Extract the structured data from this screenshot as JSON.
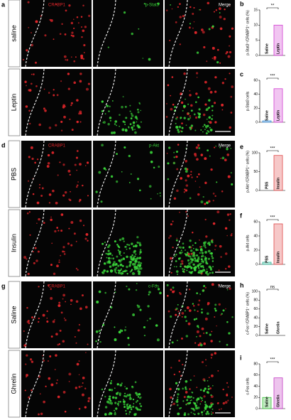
{
  "figure": {
    "panels": [
      {
        "letter": "a",
        "columns": [
          "CRABP1",
          "p-Stat3",
          "Merge"
        ],
        "rows": [
          "saline",
          "Leptin"
        ]
      },
      {
        "letter": "d",
        "columns": [
          "CRABP1",
          "p-Akt",
          "Merge"
        ],
        "rows": [
          "PBS",
          "Insulin"
        ]
      },
      {
        "letter": "g",
        "columns": [
          "CRABP1",
          "c-Fos",
          "Merge"
        ],
        "rows": [
          "Saline",
          "Ghrelin"
        ]
      }
    ]
  },
  "chart_data": [
    {
      "type": "bar",
      "panel": "b",
      "ylabel": "p-Stat3⁺/CRABP1⁺ cells (%)",
      "categories": [
        "Saline",
        "Leptin"
      ],
      "values": [
        0,
        10
      ],
      "colors": [
        "#3b3bd9",
        "#d23fd2"
      ],
      "ylim": [
        0,
        15
      ],
      "yticks": [
        0,
        5,
        10,
        15
      ],
      "significance": "**"
    },
    {
      "type": "bar",
      "panel": "c",
      "ylabel": "p-Stat3 cells",
      "categories": [
        "Saline",
        "Leptin"
      ],
      "values": [
        2,
        48
      ],
      "colors": [
        "#3b8fd9",
        "#d23fd2"
      ],
      "ylim": [
        0,
        60
      ],
      "yticks": [
        0,
        20,
        40,
        60
      ],
      "significance": "***"
    },
    {
      "type": "bar",
      "panel": "e",
      "ylabel": "p-Akt⁺/CRABP1⁺ cells (%)",
      "categories": [
        "PBS",
        "Insulin"
      ],
      "values": [
        0,
        93
      ],
      "colors": [
        "#2fb89a",
        "#e04a4a"
      ],
      "ylim": [
        0,
        100
      ],
      "yticks": [
        0,
        50,
        100
      ],
      "significance": "***"
    },
    {
      "type": "bar",
      "panel": "f",
      "ylabel": "p-Akt cells",
      "categories": [
        "PBS",
        "Insulin"
      ],
      "values": [
        3,
        57
      ],
      "colors": [
        "#2fb89a",
        "#e04a4a"
      ],
      "ylim": [
        0,
        60
      ],
      "yticks": [
        0,
        20,
        40,
        60
      ],
      "significance": "***"
    },
    {
      "type": "bar",
      "panel": "h",
      "ylabel": "c-Fos⁺/CRABP1⁺ cells (%)",
      "categories": [
        "Saline",
        "Ghrelin"
      ],
      "values": [
        0,
        0
      ],
      "colors": [
        "#3cc43c",
        "#c33cc3"
      ],
      "ylim": [
        0,
        100
      ],
      "yticks": [
        0,
        20,
        40,
        60,
        80,
        100
      ],
      "significance": "ns"
    },
    {
      "type": "bar",
      "panel": "i",
      "ylabel": "c-Fos cells",
      "categories": [
        "Saline",
        "Ghrelin"
      ],
      "values": [
        20,
        55
      ],
      "colors": [
        "#3cc43c",
        "#c33cc3"
      ],
      "ylim": [
        0,
        80
      ],
      "yticks": [
        0,
        20,
        40,
        60,
        80
      ],
      "significance": "***"
    }
  ]
}
